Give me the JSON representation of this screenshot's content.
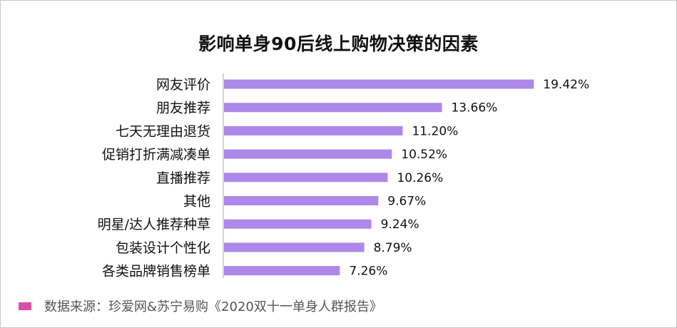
{
  "chart_data": {
    "type": "bar",
    "orientation": "horizontal",
    "title": "影响单身90后线上购物决策的因素",
    "categories": [
      "网友评价",
      "朋友推荐",
      "七天无理由退货",
      "促销打折满减凑单",
      "直播推荐",
      "其他",
      "明星/达人推荐种草",
      "包装设计个性化",
      "各类品牌销售榜单"
    ],
    "values": [
      19.42,
      13.66,
      11.2,
      10.52,
      10.26,
      9.67,
      9.24,
      8.79,
      7.26
    ],
    "value_labels": [
      "19.42%",
      "13.66%",
      "11.20%",
      "10.52%",
      "10.26%",
      "9.67%",
      "9.24%",
      "8.79%",
      "7.26%"
    ],
    "xlim": [
      0,
      22
    ],
    "grid": false,
    "legend": "none",
    "bar_color": "#ac88ea",
    "axis_color": "#c8c8c8"
  },
  "source": {
    "text": "数据来源：珍爱网&苏宁易购《2020双十一单身人群报告》",
    "swatch_color": "#d84fa9"
  }
}
